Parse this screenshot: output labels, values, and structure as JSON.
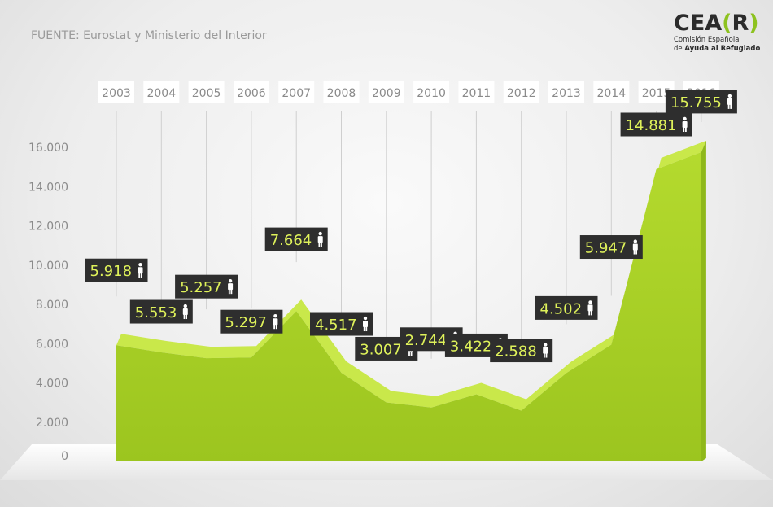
{
  "source_text": "FUENTE: Eurostat y Ministerio del Interior",
  "logo": {
    "mark_main": "CEA",
    "mark_open": "(",
    "mark_letter": "R",
    "mark_close": ")",
    "line1": "Comisión Española",
    "line2_prefix": "de ",
    "line2_bold": "Ayuda al Refugiado"
  },
  "colors": {
    "area_front": "#a6cf29",
    "area_top": "#c9e84a",
    "label_bg": "#2e2e2e",
    "label_text": "#dff25a",
    "axis_text": "#8a8a8a"
  },
  "person_icon": "person-icon",
  "chart_data": {
    "type": "area",
    "title": "",
    "xlabel": "",
    "ylabel": "",
    "categories": [
      "2003",
      "2004",
      "2005",
      "2006",
      "2007",
      "2008",
      "2009",
      "2010",
      "2011",
      "2012",
      "2013",
      "2014",
      "2015",
      "2016"
    ],
    "values": [
      5918,
      5553,
      5257,
      5297,
      7664,
      4517,
      3007,
      2744,
      3422,
      2588,
      4502,
      5947,
      14881,
      15755
    ],
    "value_labels": [
      "5.918",
      "5.553",
      "5.257",
      "5.297",
      "7.664",
      "4.517",
      "3.007",
      "2.744",
      "3.422",
      "2.588",
      "4.502",
      "5.947",
      "14.881",
      "15.755"
    ],
    "y_ticks": [
      0,
      2000,
      4000,
      6000,
      8000,
      10000,
      12000,
      14000,
      16000
    ],
    "y_tick_labels": [
      "0",
      "2.000",
      "4.000",
      "6.000",
      "8.000",
      "10.000",
      "12.000",
      "14.000",
      "16.000"
    ],
    "ylim": [
      0,
      17000
    ],
    "grid": false,
    "legend": "none"
  }
}
